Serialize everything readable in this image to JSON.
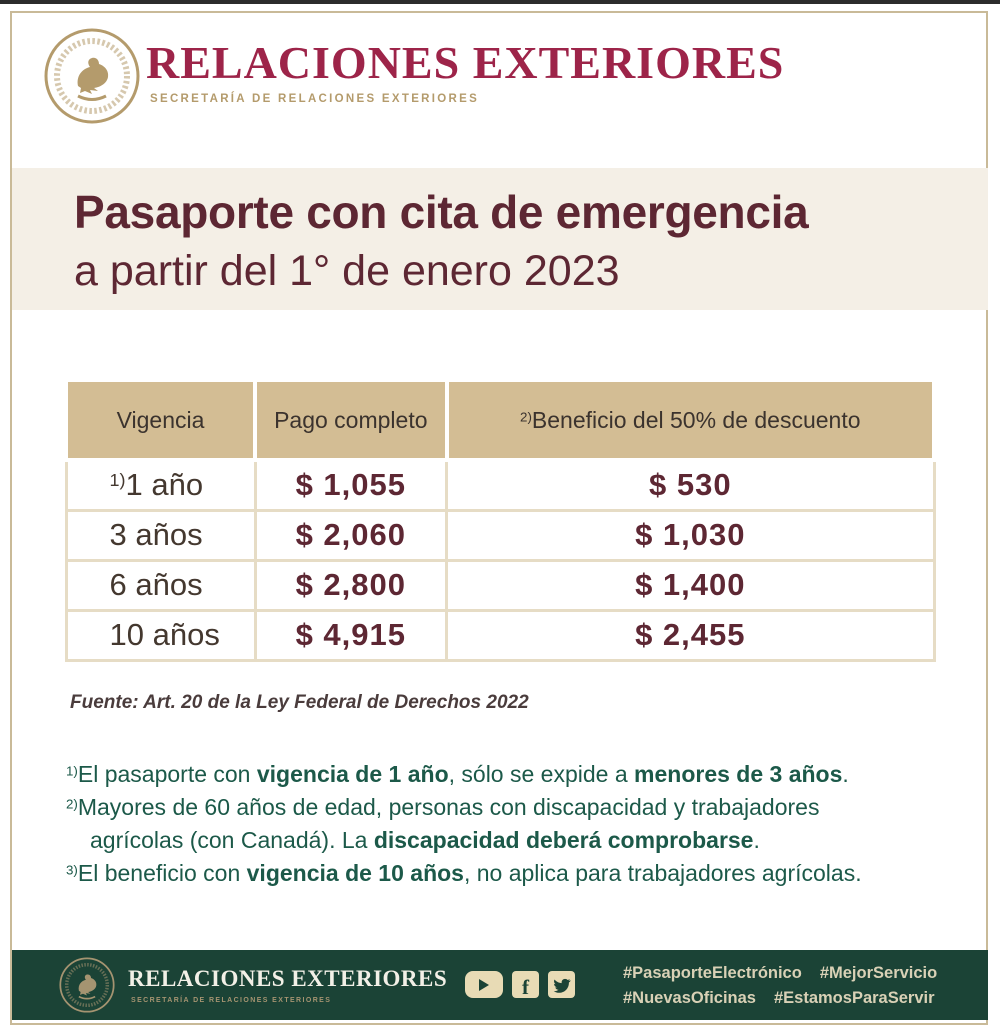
{
  "colors": {
    "brand_wine": "#9d2449",
    "title_maroon": "#5d2733",
    "gold": "#b49b6c",
    "table_header_bg": "#d3bd94",
    "banner_bg": "#f4efe6",
    "footer_green": "#1b4336",
    "note_green": "#1c5949"
  },
  "header": {
    "wordmark": "RELACIONES EXTERIORES",
    "subtitle": "SECRETARÍA DE RELACIONES EXTERIORES"
  },
  "banner": {
    "title": "Pasaporte con cita de emergencia",
    "subtitle": "a partir del 1° de enero 2023"
  },
  "table": {
    "columns": [
      {
        "sup": "",
        "label": "Vigencia"
      },
      {
        "sup": "",
        "label": "Pago completo"
      },
      {
        "sup": "2)",
        "label": "Beneficio del 50% de descuento"
      }
    ],
    "rows": [
      {
        "sup": "1)",
        "vigencia": "1 año",
        "pago": "$ 1,055",
        "beneficio": "$ 530"
      },
      {
        "sup": "",
        "vigencia": "3 años",
        "pago": "$ 2,060",
        "beneficio": "$ 1,030"
      },
      {
        "sup": "",
        "vigencia": "6 años",
        "pago": "$ 2,800",
        "beneficio": "$ 1,400"
      },
      {
        "sup": "",
        "vigencia": "10 años",
        "pago": "$ 4,915",
        "beneficio": "$ 2,455"
      }
    ],
    "source": "Fuente: Art. 20 de la Ley Federal de Derechos 2022"
  },
  "notes": [
    {
      "sup": "1)",
      "segments": [
        {
          "text": "El pasaporte con ",
          "bold": false
        },
        {
          "text": "vigencia de 1 año",
          "bold": true
        },
        {
          "text": ", sólo se expide a ",
          "bold": false
        },
        {
          "text": "menores de 3 años",
          "bold": true
        },
        {
          "text": ".",
          "bold": false
        }
      ]
    },
    {
      "sup": "2)",
      "segments": [
        {
          "text": "Mayores de 60 años de edad, personas con discapacidad y trabajadores",
          "bold": false
        },
        {
          "br": true
        },
        {
          "text": "agrícolas (con Canadá). La ",
          "bold": false
        },
        {
          "text": "discapacidad deberá comprobarse",
          "bold": true
        },
        {
          "text": ".",
          "bold": false
        }
      ]
    },
    {
      "sup": "3)",
      "segments": [
        {
          "text": "El beneficio con ",
          "bold": false
        },
        {
          "text": "vigencia de 10 años",
          "bold": true
        },
        {
          "text": ", no aplica para trabajadores agrícolas.",
          "bold": false
        }
      ]
    }
  ],
  "footer": {
    "wordmark": "RELACIONES EXTERIORES",
    "subtitle": "SECRETARÍA DE RELACIONES EXTERIORES",
    "social_icons": [
      "youtube",
      "facebook",
      "twitter"
    ],
    "hashtag_lines": [
      [
        "#PasaporteElectrónico",
        "#MejorServicio"
      ],
      [
        "#NuevasOficinas",
        "#EstamosParaServir"
      ]
    ]
  }
}
